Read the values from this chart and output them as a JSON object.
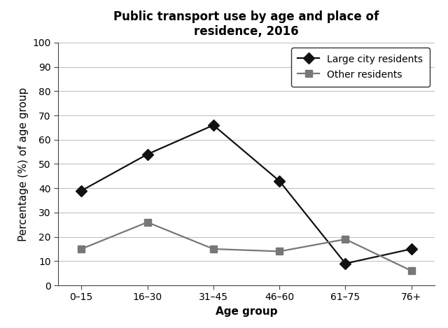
{
  "title": "Public transport use by age and place of\nresidence, 2016",
  "xlabel": "Age group",
  "ylabel": "Percentage (%) of age group",
  "age_groups": [
    "0–15",
    "16–30",
    "31–45",
    "46–60",
    "61–75",
    "76+"
  ],
  "large_city": [
    39,
    54,
    66,
    43,
    9,
    15
  ],
  "other": [
    15,
    26,
    15,
    14,
    19,
    6
  ],
  "large_city_label": "Large city residents",
  "other_label": "Other residents",
  "large_city_color": "#111111",
  "other_color": "#777777",
  "ylim": [
    0,
    100
  ],
  "yticks": [
    0,
    10,
    20,
    30,
    40,
    50,
    60,
    70,
    80,
    90,
    100
  ],
  "title_fontsize": 12,
  "axis_label_fontsize": 11,
  "tick_fontsize": 10,
  "legend_fontsize": 10,
  "background_color": "#ffffff",
  "grid_color": "#bbbbbb",
  "linewidth": 1.6,
  "marker_size_diamond": 8,
  "marker_size_square": 7
}
